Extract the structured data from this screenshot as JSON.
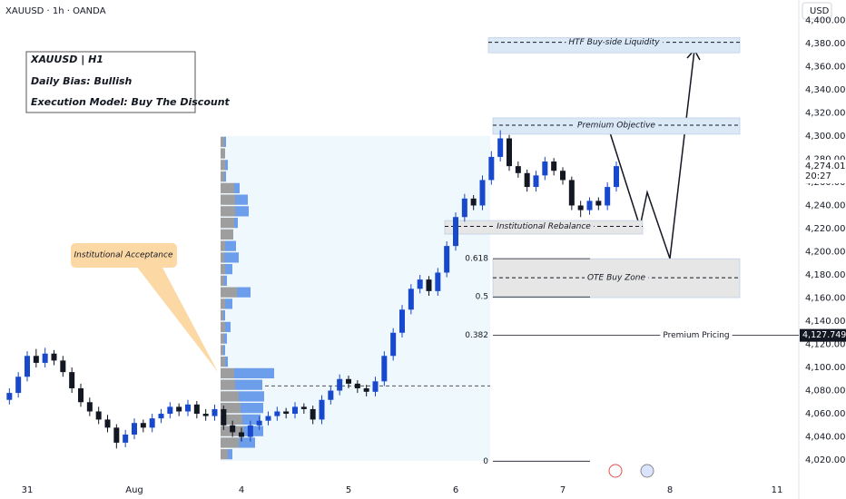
{
  "chart_data": {
    "type": "candlestick",
    "header": "XAUUSD · 1h · OANDA",
    "currency": "USD",
    "info_box": [
      "XAUUSD | H1",
      "Daily Bias: Bullish",
      "Execution Model: Buy The Discount"
    ],
    "annotation": "Institutional Acceptance",
    "up_color": "#1848cc",
    "down_color": "#131722",
    "categories": [
      null,
      null,
      "31",
      null,
      null,
      null,
      null,
      null,
      null,
      null,
      null,
      null,
      null,
      null,
      "Aug",
      null,
      null,
      null,
      null,
      null,
      null,
      null,
      null,
      null,
      null,
      null,
      "4",
      null,
      null,
      null,
      null,
      null,
      null,
      null,
      null,
      null,
      null,
      null,
      "5",
      null,
      null,
      null,
      null,
      null,
      null,
      null,
      null,
      null,
      null,
      null,
      "6",
      null,
      null,
      null,
      null,
      null,
      null,
      null,
      null,
      null,
      null,
      null,
      "7",
      null,
      null,
      null,
      null,
      null,
      null,
      null,
      null,
      null,
      null,
      null,
      "8",
      null,
      null,
      null,
      null,
      null,
      null,
      null,
      null,
      null,
      null,
      null,
      "11",
      null,
      null
    ],
    "open": [
      4072,
      4078,
      4092,
      4110,
      4104,
      4112,
      4106,
      4096,
      4082,
      4070,
      4062,
      4055,
      4048,
      4035,
      4042,
      4052,
      4048,
      4056,
      4060,
      4066,
      4062,
      4068,
      4060,
      4058,
      4064,
      4050,
      4044,
      4040,
      4050,
      4054,
      4058,
      4062,
      4060,
      4066,
      4064,
      4055,
      4072,
      4080,
      4090,
      4086,
      4082,
      4079,
      4088,
      4110,
      4130,
      4150,
      4168,
      4176,
      4166,
      4182,
      4205,
      4230,
      4246,
      4240,
      4262,
      4282,
      4298,
      4274,
      4268,
      4256,
      4266,
      4278,
      4270,
      4262,
      4240,
      4236,
      4244,
      4240,
      4256,
      null,
      null,
      null,
      null,
      null,
      null,
      null,
      null,
      null,
      null,
      null,
      null,
      null,
      null,
      null,
      null,
      null,
      null,
      null,
      null
    ],
    "high": [
      4082,
      4096,
      4114,
      4116,
      4117,
      4115,
      4110,
      4100,
      4086,
      4074,
      4066,
      4059,
      4051,
      4046,
      4056,
      4055,
      4060,
      4064,
      4070,
      4069,
      4072,
      4071,
      4064,
      4068,
      4067,
      4054,
      4048,
      4054,
      4058,
      4062,
      4066,
      4065,
      4070,
      4069,
      4067,
      4076,
      4084,
      4094,
      4093,
      4089,
      4085,
      4092,
      4114,
      4134,
      4154,
      4172,
      4180,
      4179,
      4186,
      4209,
      4234,
      4250,
      4249,
      4266,
      4287,
      4305,
      4301,
      4278,
      4271,
      4270,
      4282,
      4281,
      4273,
      4265,
      4244,
      4247,
      4247,
      4260,
      4278,
      null,
      null,
      null,
      null,
      null,
      null,
      null,
      null,
      null,
      null,
      null,
      null,
      null,
      null,
      null,
      null,
      null,
      null,
      null,
      null
    ],
    "low": [
      4068,
      4074,
      4088,
      4100,
      4100,
      4102,
      4092,
      4078,
      4066,
      4058,
      4051,
      4044,
      4030,
      4031,
      4038,
      4044,
      4044,
      4052,
      4056,
      4058,
      4058,
      4056,
      4054,
      4054,
      4046,
      4040,
      4036,
      4036,
      4046,
      4050,
      4054,
      4056,
      4056,
      4060,
      4051,
      4051,
      4068,
      4076,
      4082,
      4078,
      4075,
      4075,
      4084,
      4106,
      4126,
      4146,
      4164,
      4162,
      4162,
      4178,
      4201,
      4226,
      4236,
      4236,
      4258,
      4278,
      4270,
      4264,
      4252,
      4252,
      4262,
      4266,
      4258,
      4236,
      4230,
      4232,
      4236,
      4236,
      4252,
      null,
      null,
      null,
      null,
      null,
      null,
      null,
      null,
      null,
      null,
      null,
      null,
      null,
      null,
      null,
      null,
      null,
      null,
      null,
      null
    ],
    "close": [
      4078,
      4092,
      4110,
      4104,
      4112,
      4106,
      4096,
      4082,
      4070,
      4062,
      4055,
      4048,
      4035,
      4042,
      4052,
      4048,
      4056,
      4060,
      4066,
      4062,
      4068,
      4060,
      4058,
      4064,
      4050,
      4044,
      4040,
      4050,
      4054,
      4058,
      4062,
      4060,
      4066,
      4064,
      4055,
      4072,
      4080,
      4090,
      4086,
      4082,
      4079,
      4088,
      4110,
      4130,
      4150,
      4168,
      4176,
      4166,
      4182,
      4205,
      4230,
      4246,
      4240,
      4262,
      4282,
      4298,
      4274,
      4268,
      4256,
      4266,
      4278,
      4270,
      4262,
      4240,
      4236,
      4244,
      4240,
      4256,
      4274.01,
      null,
      null,
      null,
      null,
      null,
      null,
      null,
      null,
      null,
      null,
      null,
      null,
      null,
      null,
      null,
      null,
      null,
      null,
      null,
      null
    ],
    "last_price_label": "4,274.010",
    "countdown": "20:27",
    "ylim": [
      4002,
      4417.6
    ],
    "yticks": [
      {
        "value": 4020,
        "label": "4,020.000"
      },
      {
        "value": 4040,
        "label": "4,040.000"
      },
      {
        "value": 4060,
        "label": "4,060.000"
      },
      {
        "value": 4080,
        "label": "4,080.000"
      },
      {
        "value": 4100,
        "label": "4,100.000"
      },
      {
        "value": 4120,
        "label": "4,120.000"
      },
      {
        "value": 4140,
        "label": "4,140.000"
      },
      {
        "value": 4160,
        "label": "4,160.000"
      },
      {
        "value": 4180,
        "label": "4,180.000"
      },
      {
        "value": 4200,
        "label": "4,200.000"
      },
      {
        "value": 4220,
        "label": "4,220.000"
      },
      {
        "value": 4240,
        "label": "4,240.000"
      },
      {
        "value": 4260,
        "label": "4,260.000"
      },
      {
        "value": 4280,
        "label": "4,280.000"
      },
      {
        "value": 4300,
        "label": "4,300.000"
      },
      {
        "value": 4320,
        "label": "4,320.000"
      },
      {
        "value": 4340,
        "label": "4,340.000"
      },
      {
        "value": 4360,
        "label": "4,360.000"
      },
      {
        "value": 4380,
        "label": "4,380.000"
      },
      {
        "value": 4400,
        "label": "4,400.000"
      }
    ],
    "grid": false,
    "zones": [
      {
        "label": "HTF Buy-side Liquidity",
        "top": 4385,
        "bottom": 4372,
        "mid": 4381,
        "color": "#dbe9f7"
      },
      {
        "label": "Premium Objective",
        "top": 4315.7,
        "bottom": 4301.6,
        "mid": 4309.4,
        "color": "#dbe9f7"
      },
      {
        "label": "Institutional Rebalance",
        "top": 4227,
        "bottom": 4215.3,
        "mid": 4222,
        "color": "#e6e6e6"
      },
      {
        "label": "OTE Buy Zone",
        "top": 4194,
        "bottom": 4160.4,
        "mid": 4177.6,
        "color": "#e6e6e6"
      }
    ],
    "fib_levels": [
      {
        "label": "0.618",
        "value": 4194
      },
      {
        "label": "0.5",
        "value": 4161
      },
      {
        "label": "0.382",
        "value": 4127.749,
        "line_label": "Premium Pricing",
        "price_label": "4,127.749"
      },
      {
        "label": "0",
        "value": 4019
      }
    ],
    "poc": 4084,
    "volume_profile": {
      "prices": [
        4295,
        4285,
        4275,
        4265,
        4255,
        4245,
        4235,
        4225,
        4215,
        4205,
        4195,
        4185,
        4175,
        4165,
        4155,
        4145,
        4135,
        4125,
        4115,
        4105,
        4095,
        4085,
        4075,
        4065,
        4055,
        4045,
        4035,
        4025
      ],
      "sell": [
        4,
        5,
        5,
        4,
        15,
        16,
        16,
        15,
        14,
        5,
        4,
        5,
        4,
        18,
        5,
        3,
        5,
        4,
        3,
        5,
        15,
        16,
        20,
        22,
        24,
        25,
        20,
        8
      ],
      "buy": [
        2,
        0,
        3,
        2,
        6,
        14,
        15,
        4,
        0,
        12,
        16,
        8,
        3,
        15,
        8,
        2,
        6,
        3,
        2,
        3,
        44,
        30,
        28,
        25,
        20,
        22,
        18,
        5
      ],
      "sell_color": "#9e9e9e",
      "buy_color": "#6d9eeb"
    }
  }
}
